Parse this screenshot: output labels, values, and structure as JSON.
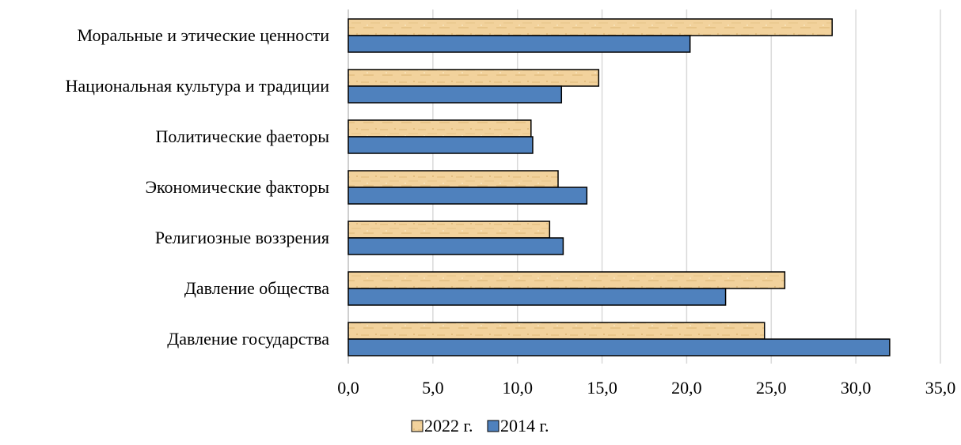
{
  "chart_data": {
    "type": "bar",
    "orientation": "horizontal",
    "title": "",
    "xlabel": "",
    "ylabel": "",
    "xlim": [
      0,
      35
    ],
    "x_ticks": [
      "0,0",
      "5,0",
      "10,0",
      "15,0",
      "20,0",
      "25,0",
      "30,0",
      "35,0"
    ],
    "grid": true,
    "legend_position": "bottom",
    "categories": [
      "Моральные и этические ценности",
      "Национальная культура и традиции",
      "Политические фаеторы",
      "Экономические факторы",
      "Религиозные воззрения",
      "Давление общества",
      "Давление государства"
    ],
    "series": [
      {
        "name": "2022 г.",
        "color": "#f2d29c",
        "values": [
          28.6,
          14.8,
          10.8,
          12.4,
          11.9,
          25.8,
          24.6
        ]
      },
      {
        "name": "2014 г.",
        "color": "#4f81bd",
        "values": [
          20.2,
          12.6,
          10.9,
          14.1,
          12.7,
          22.3,
          32.0
        ]
      }
    ]
  }
}
